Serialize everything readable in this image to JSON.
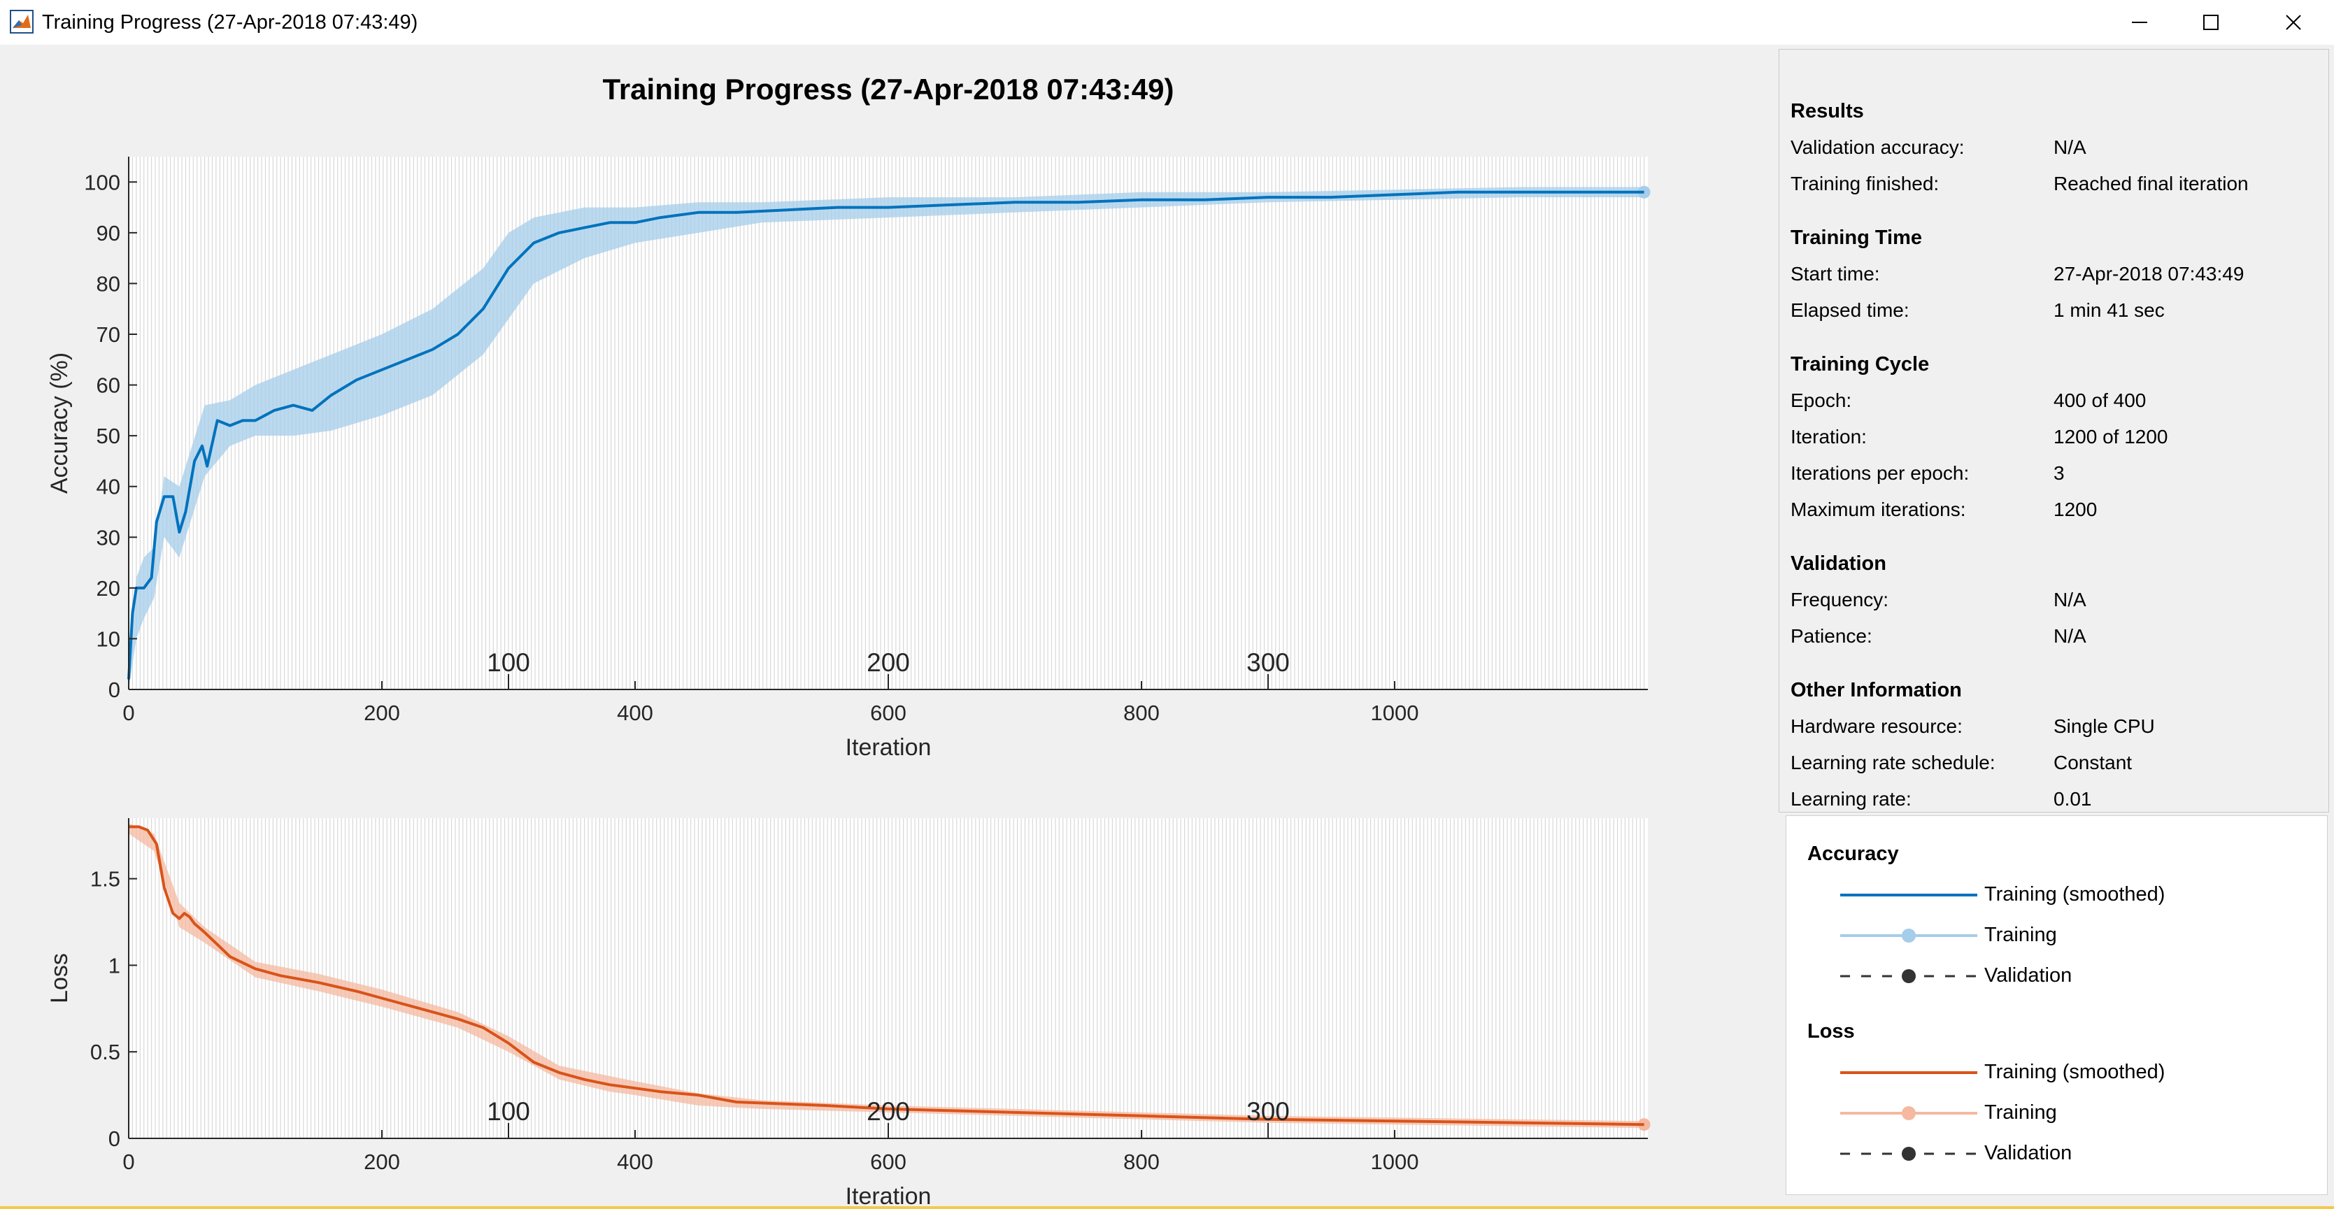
{
  "window": {
    "title": "Training Progress (27-Apr-2018 07:43:49)",
    "app_icon": "matlab-icon",
    "controls": [
      "minimize-icon",
      "maximize-icon",
      "close-icon"
    ]
  },
  "figure": {
    "title": "Training Progress (27-Apr-2018 07:43:49)"
  },
  "chart_data": [
    {
      "type": "line",
      "ylabel": "Accuracy (%)",
      "xlabel": "Iteration",
      "xlim": [
        0,
        1200
      ],
      "ylim": [
        0,
        105
      ],
      "xticks": [
        0,
        200,
        400,
        600,
        800,
        1000
      ],
      "yticks": [
        0,
        10,
        20,
        30,
        40,
        50,
        60,
        70,
        80,
        90,
        100
      ],
      "epoch_labels": [
        {
          "iteration": 300,
          "label": "100"
        },
        {
          "iteration": 600,
          "label": "200"
        },
        {
          "iteration": 900,
          "label": "300"
        }
      ],
      "grid": "vertical lines at every epoch boundary",
      "series": [
        {
          "name": "Training (smoothed)",
          "color": "#0072bd",
          "x": [
            0,
            3,
            6,
            12,
            18,
            22,
            28,
            35,
            40,
            45,
            52,
            58,
            62,
            70,
            80,
            90,
            100,
            115,
            130,
            145,
            160,
            180,
            200,
            220,
            240,
            260,
            280,
            300,
            320,
            340,
            360,
            380,
            400,
            420,
            450,
            480,
            520,
            560,
            600,
            650,
            700,
            750,
            800,
            850,
            900,
            950,
            1000,
            1050,
            1100,
            1150,
            1197
          ],
          "y": [
            2,
            15,
            20,
            20,
            22,
            33,
            38,
            38,
            31,
            35,
            45,
            48,
            44,
            53,
            52,
            53,
            53,
            55,
            56,
            55,
            58,
            61,
            63,
            65,
            67,
            70,
            75,
            83,
            88,
            90,
            91,
            92,
            92,
            93,
            94,
            94,
            94.5,
            95,
            95,
            95.5,
            96,
            96,
            96.5,
            96.5,
            97,
            97,
            97.5,
            98,
            98,
            98,
            98
          ]
        },
        {
          "name": "Training",
          "color": "#a6cde9",
          "x": [
            0,
            6,
            12,
            20,
            28,
            40,
            60,
            80,
            100,
            130,
            160,
            200,
            240,
            280,
            300,
            320,
            360,
            400,
            450,
            500,
            600,
            700,
            800,
            900,
            1000,
            1100,
            1197
          ],
          "y_low": [
            0,
            10,
            14,
            18,
            30,
            26,
            42,
            48,
            50,
            50,
            51,
            54,
            58,
            66,
            73,
            80,
            85,
            88,
            90,
            92,
            93,
            94,
            95,
            96,
            96.5,
            97,
            97
          ],
          "y_high": [
            5,
            22,
            26,
            28,
            42,
            40,
            56,
            57,
            60,
            63,
            66,
            70,
            75,
            83,
            90,
            93,
            95,
            95,
            96,
            96,
            97,
            97,
            98,
            98,
            98.5,
            99,
            99
          ]
        }
      ]
    },
    {
      "type": "line",
      "ylabel": "Loss",
      "xlabel": "Iteration",
      "xlim": [
        0,
        1200
      ],
      "ylim": [
        0,
        1.85
      ],
      "xticks": [
        0,
        200,
        400,
        600,
        800,
        1000
      ],
      "yticks": [
        0,
        0.5,
        1,
        1.5
      ],
      "ytick_labels": [
        "0",
        "0.5",
        "1",
        "1.5"
      ],
      "epoch_labels": [
        {
          "iteration": 300,
          "label": "100"
        },
        {
          "iteration": 600,
          "label": "200"
        },
        {
          "iteration": 900,
          "label": "300"
        }
      ],
      "grid": "vertical lines at every epoch boundary",
      "series": [
        {
          "name": "Training (smoothed)",
          "color": "#d95319",
          "x": [
            0,
            8,
            15,
            22,
            28,
            35,
            40,
            44,
            48,
            52,
            60,
            70,
            80,
            100,
            120,
            150,
            180,
            200,
            230,
            260,
            280,
            300,
            320,
            340,
            360,
            380,
            400,
            420,
            450,
            480,
            550,
            600,
            650,
            700,
            800,
            900,
            1000,
            1100,
            1197
          ],
          "y": [
            1.8,
            1.8,
            1.78,
            1.7,
            1.45,
            1.3,
            1.27,
            1.3,
            1.28,
            1.24,
            1.19,
            1.12,
            1.05,
            0.98,
            0.94,
            0.9,
            0.85,
            0.81,
            0.75,
            0.69,
            0.64,
            0.55,
            0.44,
            0.38,
            0.34,
            0.31,
            0.29,
            0.27,
            0.25,
            0.21,
            0.19,
            0.17,
            0.16,
            0.15,
            0.13,
            0.11,
            0.1,
            0.09,
            0.08
          ]
        },
        {
          "name": "Training",
          "color": "#f4b9a0",
          "x": [
            0,
            20,
            40,
            60,
            100,
            150,
            200,
            260,
            300,
            340,
            380,
            400,
            450,
            500,
            600,
            700,
            800,
            900,
            1000,
            1100,
            1197
          ],
          "y_low": [
            1.76,
            1.66,
            1.22,
            1.13,
            0.93,
            0.85,
            0.76,
            0.64,
            0.5,
            0.34,
            0.27,
            0.25,
            0.19,
            0.17,
            0.15,
            0.13,
            0.11,
            0.09,
            0.08,
            0.07,
            0.06
          ],
          "y_high": [
            1.82,
            1.76,
            1.36,
            1.22,
            1.02,
            0.95,
            0.86,
            0.73,
            0.59,
            0.42,
            0.36,
            0.33,
            0.26,
            0.22,
            0.19,
            0.17,
            0.15,
            0.13,
            0.12,
            0.11,
            0.1
          ]
        }
      ]
    }
  ],
  "info": {
    "sections": [
      {
        "title": "Results",
        "rows": [
          {
            "label": "Validation accuracy:",
            "value": "N/A"
          },
          {
            "label": "Training finished:",
            "value": "Reached final iteration"
          }
        ]
      },
      {
        "title": "Training Time",
        "rows": [
          {
            "label": "Start time:",
            "value": "27-Apr-2018 07:43:49"
          },
          {
            "label": "Elapsed time:",
            "value": "1 min 41 sec"
          }
        ]
      },
      {
        "title": "Training Cycle",
        "rows": [
          {
            "label": "Epoch:",
            "value": "400 of 400"
          },
          {
            "label": "Iteration:",
            "value": "1200 of 1200"
          },
          {
            "label": "Iterations per epoch:",
            "value": "3"
          },
          {
            "label": "Maximum iterations:",
            "value": "1200"
          }
        ]
      },
      {
        "title": "Validation",
        "rows": [
          {
            "label": "Frequency:",
            "value": "N/A"
          },
          {
            "label": "Patience:",
            "value": "N/A"
          }
        ]
      },
      {
        "title": "Other Information",
        "rows": [
          {
            "label": "Hardware resource:",
            "value": "Single CPU"
          },
          {
            "label": "Learning rate schedule:",
            "value": "Constant"
          },
          {
            "label": "Learning rate:",
            "value": "0.01"
          }
        ]
      }
    ]
  },
  "legend": {
    "groups": [
      {
        "title": "Accuracy",
        "items": [
          {
            "label": "Training (smoothed)",
            "style": "solid",
            "color": "#0072bd",
            "marker": false
          },
          {
            "label": "Training",
            "style": "solid",
            "color": "#a6cde9",
            "marker": true
          },
          {
            "label": "Validation",
            "style": "dashed",
            "color": "#333333",
            "marker": true
          }
        ]
      },
      {
        "title": "Loss",
        "items": [
          {
            "label": "Training (smoothed)",
            "style": "solid",
            "color": "#d95319",
            "marker": false
          },
          {
            "label": "Training",
            "style": "solid",
            "color": "#f4b9a0",
            "marker": true
          },
          {
            "label": "Validation",
            "style": "dashed",
            "color": "#333333",
            "marker": true
          }
        ]
      }
    ]
  }
}
